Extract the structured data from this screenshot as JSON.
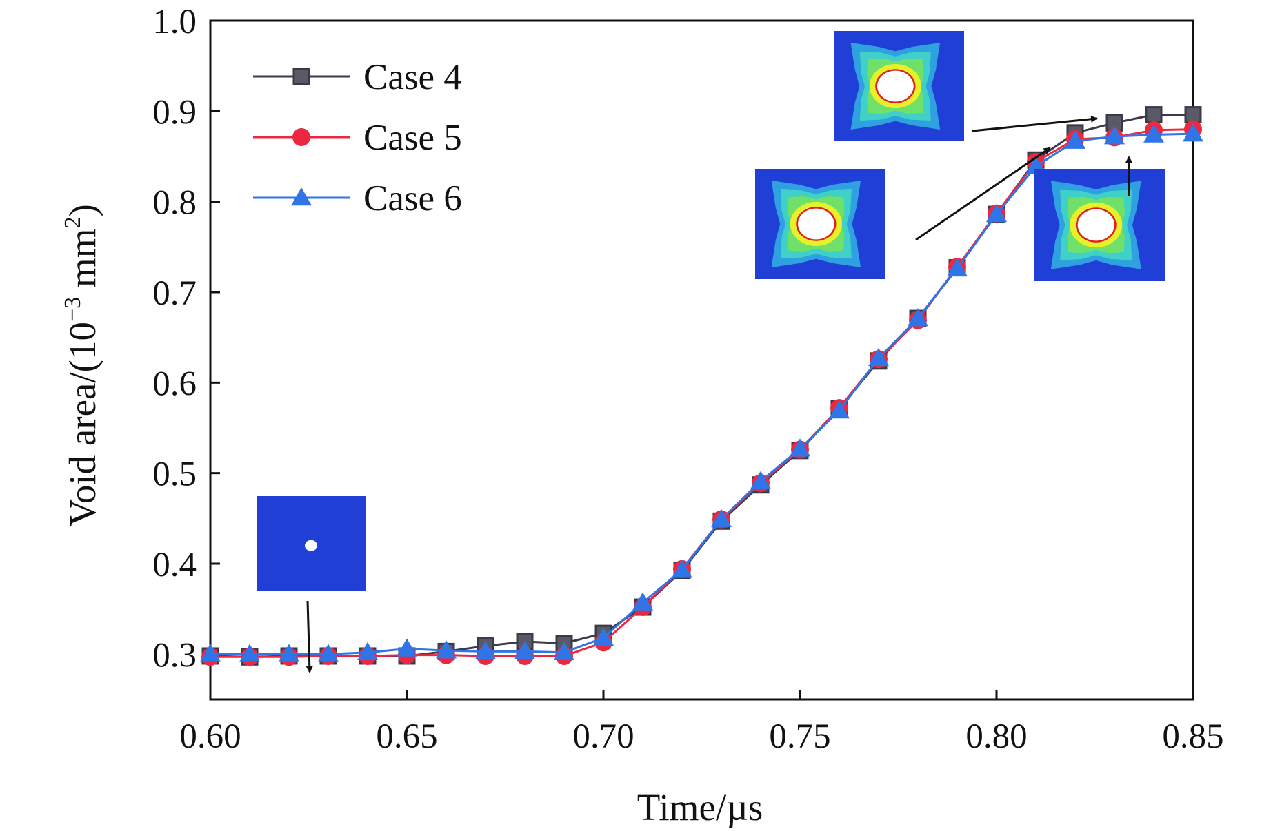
{
  "chart_data": {
    "type": "line",
    "title": "",
    "xlabel": "Time/µs",
    "ylabel": {
      "prefix": "Void area/(10",
      "exponent1": "−3",
      "middle": " mm",
      "exponent2": "2",
      "suffix": ")"
    },
    "xlim": [
      0.6,
      0.85
    ],
    "ylim": [
      0.25,
      1.0
    ],
    "xticks": [
      0.6,
      0.65,
      0.7,
      0.75,
      0.8,
      0.85
    ],
    "xtick_labels": [
      "0.60",
      "0.65",
      "0.70",
      "0.75",
      "0.80",
      "0.85"
    ],
    "yticks": [
      0.3,
      0.4,
      0.5,
      0.6,
      0.7,
      0.8,
      0.9,
      1.0
    ],
    "ytick_labels": [
      "0.3",
      "0.4",
      "0.5",
      "0.6",
      "0.7",
      "0.8",
      "0.9",
      "1.0"
    ],
    "grid": false,
    "legend_position": "top-left",
    "x": [
      0.6,
      0.61,
      0.62,
      0.63,
      0.64,
      0.65,
      0.66,
      0.67,
      0.68,
      0.69,
      0.7,
      0.71,
      0.72,
      0.73,
      0.74,
      0.75,
      0.76,
      0.77,
      0.78,
      0.79,
      0.8,
      0.81,
      0.82,
      0.83,
      0.84,
      0.85
    ],
    "series": [
      {
        "name": "Case 4",
        "color": "#3a3a4a",
        "marker": "square",
        "values": [
          0.298,
          0.297,
          0.298,
          0.298,
          0.298,
          0.298,
          0.303,
          0.309,
          0.314,
          0.312,
          0.323,
          0.352,
          0.392,
          0.447,
          0.487,
          0.525,
          0.571,
          0.624,
          0.671,
          0.727,
          0.786,
          0.846,
          0.876,
          0.887,
          0.896,
          0.896
        ]
      },
      {
        "name": "Case 5",
        "color": "#ec2840",
        "marker": "circle",
        "values": [
          0.297,
          0.297,
          0.297,
          0.298,
          0.298,
          0.299,
          0.299,
          0.298,
          0.298,
          0.298,
          0.313,
          0.352,
          0.394,
          0.449,
          0.489,
          0.526,
          0.572,
          0.626,
          0.669,
          0.728,
          0.787,
          0.844,
          0.869,
          0.871,
          0.879,
          0.88
        ]
      },
      {
        "name": "Case 6",
        "color": "#2f75e8",
        "marker": "triangle",
        "values": [
          0.3,
          0.3,
          0.3,
          0.3,
          0.302,
          0.306,
          0.304,
          0.303,
          0.303,
          0.302,
          0.318,
          0.357,
          0.393,
          0.449,
          0.491,
          0.527,
          0.569,
          0.627,
          0.671,
          0.726,
          0.786,
          0.839,
          0.867,
          0.872,
          0.874,
          0.875
        ]
      }
    ],
    "annotations": [
      {
        "name": "void-inset-initial",
        "description_type": "contour-inset",
        "points_to": {
          "x": 0.625,
          "y": 0.298
        }
      },
      {
        "name": "void-inset-0-81",
        "description_type": "contour-inset",
        "points_to": {
          "x": 0.812,
          "y": 0.862
        }
      },
      {
        "name": "void-inset-0-82",
        "description_type": "contour-inset",
        "points_to": {
          "x": 0.822,
          "y": 0.887
        }
      },
      {
        "name": "void-inset-0-83",
        "description_type": "contour-inset",
        "points_to": {
          "x": 0.833,
          "y": 0.875
        }
      }
    ]
  },
  "colors": {
    "axis": "#111111",
    "contour_background": "#1f3fd6",
    "contour_mid": "#2fa0e0",
    "contour_outer": "#3fd0c8",
    "contour_green": "#6fe06a",
    "contour_yellow": "#e8f02a",
    "contour_red": "#e02020",
    "void": "#ffffff",
    "arrow": "#111111"
  }
}
